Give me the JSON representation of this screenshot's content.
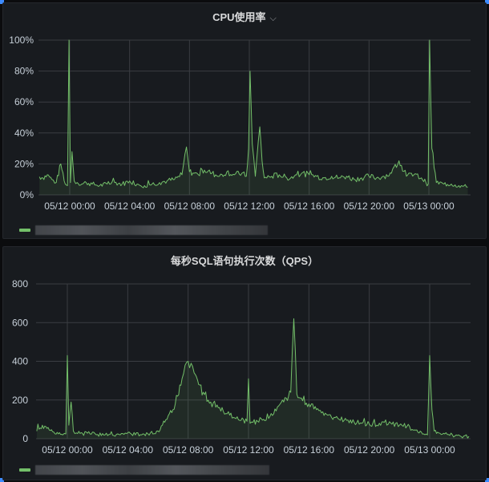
{
  "panels": [
    {
      "title": "CPU使用率",
      "has_menu_chevron": true,
      "legend": {
        "series_label": "[redacted]",
        "color": "#73bf69"
      }
    },
    {
      "title": "每秒SQL语句执行次数（QPS）",
      "has_menu_chevron": false,
      "legend": {
        "series_label": "[redacted]",
        "color": "#73bf69"
      }
    }
  ],
  "icons": {
    "chevron": "⌵"
  },
  "chart_data": [
    {
      "type": "area",
      "title": "CPU使用率",
      "xlabel": "",
      "ylabel": "",
      "y_ticks": [
        "0%",
        "20%",
        "40%",
        "60%",
        "80%",
        "100%"
      ],
      "ylim": [
        0,
        100
      ],
      "x_ticks": [
        "05/12 00:00",
        "05/12 04:00",
        "05/12 08:00",
        "05/12 12:00",
        "05/12 16:00",
        "05/12 20:00",
        "05/13 00:00"
      ],
      "grid": true,
      "legend_position": "bottom",
      "series": [
        {
          "name": "[redacted]",
          "color": "#73bf69",
          "x_hours": [
            -2.1,
            -1.8,
            -1.5,
            -1.2,
            -0.9,
            -0.6,
            -0.3,
            -0.15,
            -0.05,
            0.05,
            0.15,
            0.3,
            0.5,
            0.8,
            1.1,
            1.5,
            2.0,
            2.5,
            3.0,
            3.5,
            4.0,
            4.5,
            5.0,
            5.5,
            6.0,
            6.5,
            7.0,
            7.5,
            7.8,
            8.0,
            8.3,
            8.6,
            9.0,
            9.5,
            10.0,
            10.5,
            11.0,
            11.5,
            11.8,
            11.95,
            12.05,
            12.2,
            12.4,
            12.7,
            12.85,
            13.0,
            13.5,
            14.0,
            14.5,
            15.0,
            15.5,
            16.0,
            16.5,
            17.0,
            17.5,
            18.0,
            18.5,
            19.0,
            19.5,
            20.0,
            20.5,
            21.0,
            21.5,
            22.0,
            22.5,
            23.0,
            23.5,
            23.8,
            23.95,
            24.05,
            24.2,
            24.5,
            25.0,
            25.5,
            26.0,
            26.6
          ],
          "values": [
            12,
            11,
            13,
            10,
            8,
            20,
            7,
            6,
            100,
            8,
            28,
            9,
            8,
            7,
            8,
            7,
            6,
            7,
            8,
            7,
            9,
            7,
            6,
            7,
            8,
            9,
            10,
            13,
            31,
            15,
            14,
            13,
            16,
            14,
            12,
            15,
            13,
            14,
            12,
            30,
            80,
            33,
            12,
            44,
            22,
            11,
            12,
            13,
            11,
            12,
            14,
            13,
            12,
            11,
            12,
            11,
            12,
            10,
            11,
            12,
            11,
            12,
            14,
            22,
            12,
            13,
            11,
            8,
            7,
            100,
            30,
            8,
            7,
            7,
            6,
            5
          ]
        }
      ]
    },
    {
      "type": "area",
      "title": "每秒SQL语句执行次数（QPS）",
      "xlabel": "",
      "ylabel": "",
      "y_ticks": [
        "0",
        "200",
        "400",
        "600",
        "800"
      ],
      "ylim": [
        0,
        800
      ],
      "x_ticks": [
        "05/12 00:00",
        "05/12 04:00",
        "05/12 08:00",
        "05/12 12:00",
        "05/12 16:00",
        "05/12 20:00",
        "05/13 00:00"
      ],
      "grid": true,
      "legend_position": "bottom",
      "series": [
        {
          "name": "[redacted]",
          "color": "#73bf69",
          "x_hours": [
            -2.1,
            -1.8,
            -1.5,
            -1.2,
            -0.9,
            -0.6,
            -0.3,
            -0.1,
            0.0,
            0.1,
            0.25,
            0.4,
            0.6,
            1.0,
            1.5,
            2.0,
            2.5,
            3.0,
            3.5,
            4.0,
            4.5,
            5.0,
            5.5,
            6.0,
            6.3,
            6.6,
            7.0,
            7.3,
            7.6,
            7.8,
            8.0,
            8.2,
            8.4,
            8.7,
            9.0,
            9.5,
            10.0,
            10.5,
            11.0,
            11.5,
            11.9,
            12.0,
            12.1,
            12.3,
            12.6,
            13.0,
            13.5,
            14.0,
            14.5,
            14.8,
            15.0,
            15.2,
            15.5,
            16.0,
            16.5,
            17.0,
            17.5,
            18.0,
            18.5,
            19.0,
            19.5,
            20.0,
            20.5,
            21.0,
            21.5,
            22.0,
            22.5,
            23.0,
            23.3,
            23.6,
            23.85,
            24.0,
            24.15,
            24.3,
            24.6,
            25.0,
            25.5,
            26.0,
            26.6
          ],
          "values": [
            50,
            55,
            65,
            45,
            35,
            25,
            20,
            25,
            430,
            70,
            190,
            40,
            30,
            28,
            25,
            22,
            20,
            18,
            20,
            30,
            20,
            25,
            30,
            40,
            70,
            100,
            150,
            220,
            310,
            380,
            400,
            390,
            340,
            280,
            240,
            190,
            160,
            130,
            110,
            95,
            90,
            310,
            80,
            85,
            90,
            100,
            130,
            170,
            210,
            240,
            620,
            230,
            210,
            180,
            150,
            120,
            110,
            100,
            95,
            85,
            80,
            75,
            70,
            85,
            75,
            70,
            65,
            45,
            30,
            25,
            20,
            430,
            150,
            40,
            30,
            25,
            20,
            15,
            12
          ]
        }
      ]
    }
  ]
}
